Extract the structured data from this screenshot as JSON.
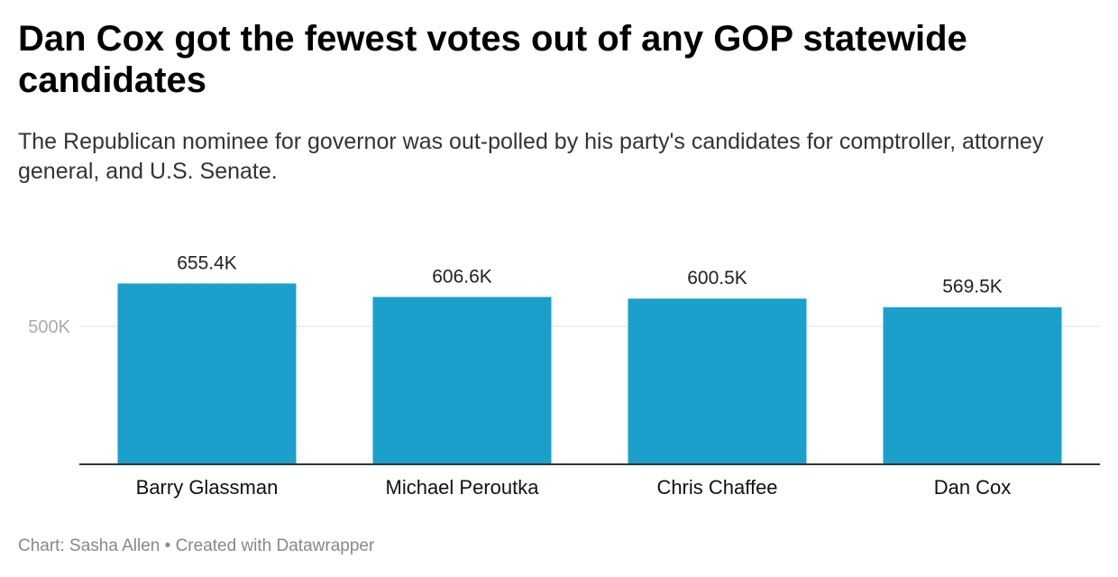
{
  "chart_data": {
    "type": "bar",
    "title": "Dan Cox got the fewest votes out of any GOP statewide candidates",
    "subtitle": "The Republican nominee for governor was out-polled by his party's candidates for comptroller, attorney general, and U.S. Senate.",
    "categories": [
      "Barry Glassman",
      "Michael Peroutka",
      "Chris Chaffee",
      "Dan Cox"
    ],
    "values": [
      655400,
      606600,
      600500,
      569500
    ],
    "value_labels": [
      "655.4K",
      "606.6K",
      "600.5K",
      "569.5K"
    ],
    "y_ticks": [
      500000
    ],
    "y_tick_labels": [
      "500K"
    ],
    "xlabel": "",
    "ylabel": "",
    "bar_color": "#1aa0cb",
    "gridlines": true,
    "legend": "none"
  },
  "footer": {
    "source": "Chart: Sasha Allen • Created with Datawrapper"
  }
}
